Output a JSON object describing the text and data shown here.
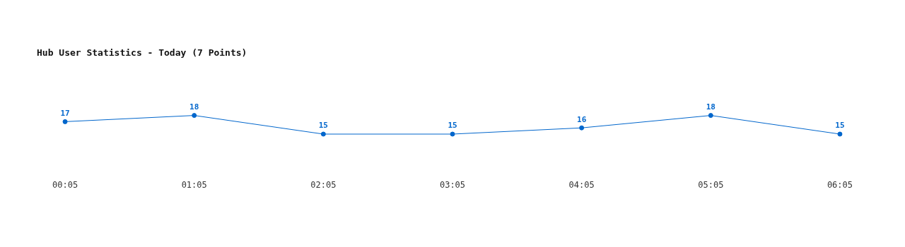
{
  "chart_data": {
    "type": "line",
    "title": "Hub User Statistics - Today (7 Points)",
    "categories": [
      "00:05",
      "01:05",
      "02:05",
      "03:05",
      "04:05",
      "05:05",
      "06:05"
    ],
    "values": [
      17,
      18,
      15,
      15,
      16,
      18,
      15
    ],
    "color": "#0066cc",
    "data_labels": true,
    "marker": "circle",
    "grid": false,
    "legend": false
  }
}
